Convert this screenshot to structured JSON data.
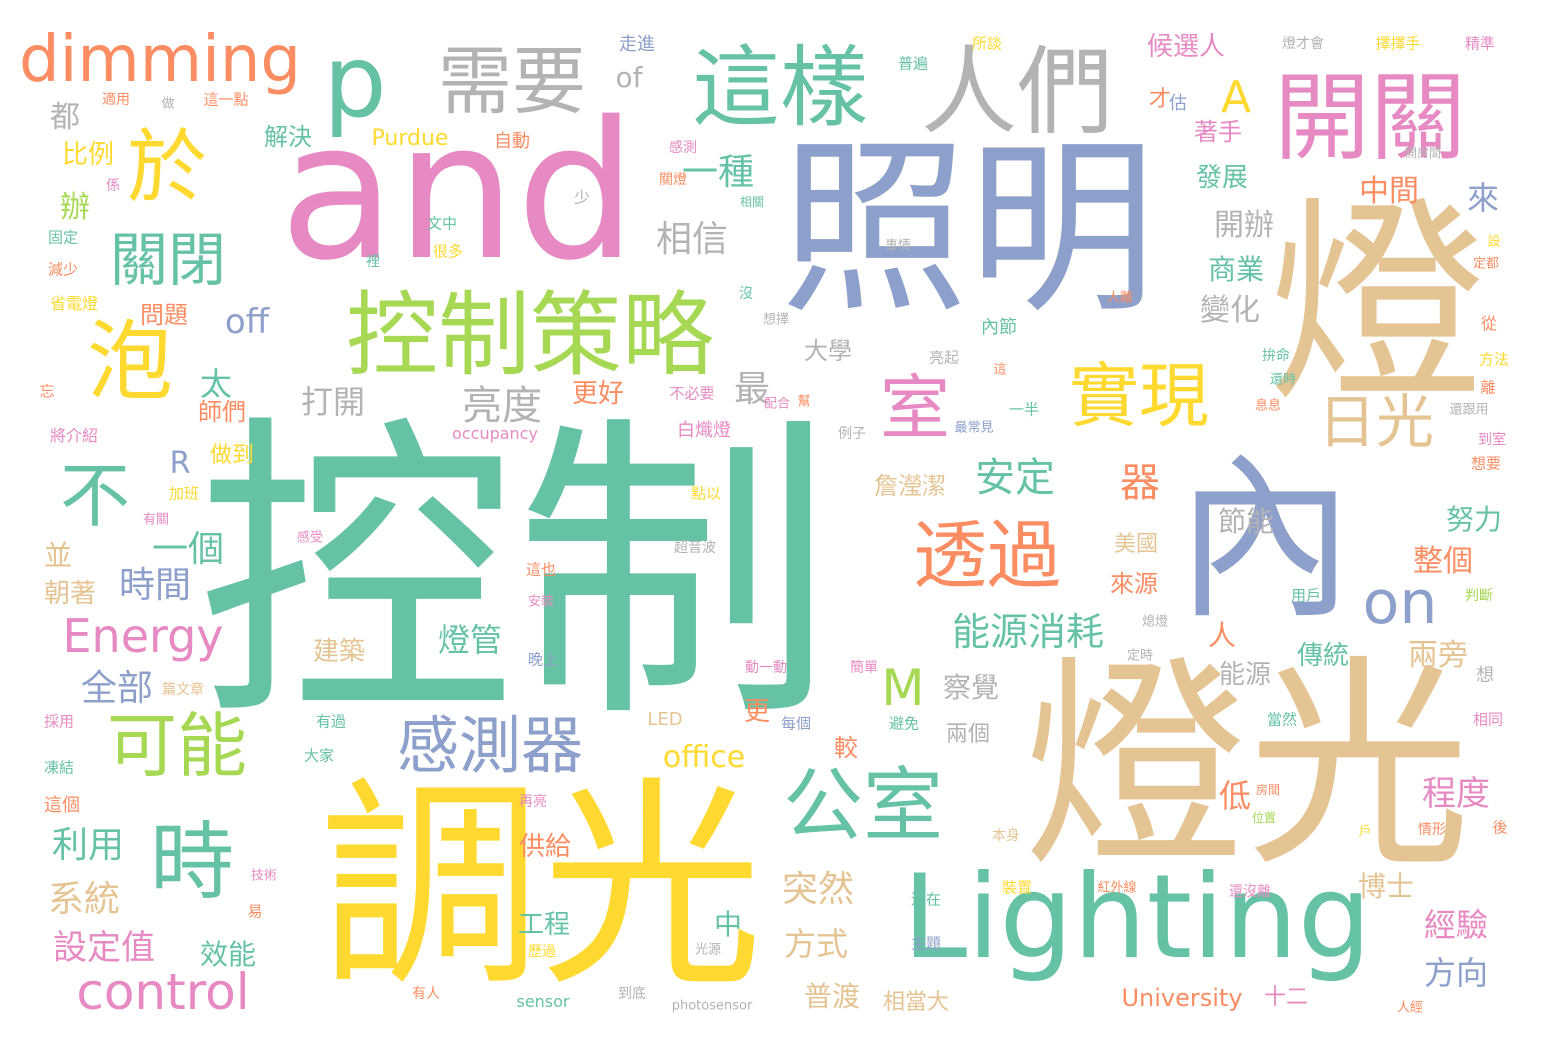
{
  "colors": {
    "teal": "#66c2a5",
    "orange": "#fc8d62",
    "blue": "#8da0cb",
    "pink": "#e78ac3",
    "green": "#a6d854",
    "yellow": "#ffd92f",
    "tan": "#e5c494",
    "gray": "#b3b3b3"
  },
  "words": [
    {
      "text": "控制",
      "color": "teal"
    },
    {
      "text": "and",
      "color": "pink"
    },
    {
      "text": "照明",
      "color": "blue"
    },
    {
      "text": "燈光",
      "color": "tan"
    },
    {
      "text": "調光",
      "color": "yellow"
    },
    {
      "text": "燈",
      "color": "tan"
    },
    {
      "text": "內",
      "color": "blue"
    },
    {
      "text": "Lighting",
      "color": "teal"
    },
    {
      "text": "控制策略",
      "color": "green"
    },
    {
      "text": "這樣",
      "color": "teal"
    },
    {
      "text": "人們",
      "color": "gray"
    },
    {
      "text": "開關",
      "color": "pink"
    },
    {
      "text": "dimming",
      "color": "orange"
    },
    {
      "text": "p",
      "color": "teal"
    },
    {
      "text": "需要",
      "color": "gray"
    },
    {
      "text": "於",
      "color": "yellow"
    },
    {
      "text": "泡",
      "color": "yellow"
    },
    {
      "text": "時",
      "color": "teal"
    },
    {
      "text": "公室",
      "color": "teal"
    },
    {
      "text": "透過",
      "color": "orange"
    },
    {
      "text": "實現",
      "color": "yellow"
    },
    {
      "text": "室",
      "color": "pink"
    },
    {
      "text": "可能",
      "color": "green"
    },
    {
      "text": "感測器",
      "color": "blue"
    },
    {
      "text": "不",
      "color": "teal"
    },
    {
      "text": "關閉",
      "color": "teal"
    },
    {
      "text": "日光",
      "color": "tan"
    },
    {
      "text": "on",
      "color": "blue"
    },
    {
      "text": "control",
      "color": "pink"
    },
    {
      "text": "Energy",
      "color": "pink"
    },
    {
      "text": "M",
      "color": "green"
    },
    {
      "text": "A",
      "color": "yellow"
    },
    {
      "text": "一種",
      "color": "teal"
    },
    {
      "text": "相信",
      "color": "gray"
    },
    {
      "text": "安定",
      "color": "teal"
    },
    {
      "text": "器",
      "color": "orange"
    },
    {
      "text": "能源消耗",
      "color": "teal"
    },
    {
      "text": "燈管",
      "color": "teal"
    },
    {
      "text": "亮度",
      "color": "gray"
    },
    {
      "text": "打開",
      "color": "gray"
    },
    {
      "text": "最",
      "color": "gray"
    },
    {
      "text": "太",
      "color": "teal"
    },
    {
      "text": "off",
      "color": "blue"
    },
    {
      "text": "一個",
      "color": "teal"
    },
    {
      "text": "時間",
      "color": "blue"
    },
    {
      "text": "全部",
      "color": "blue"
    },
    {
      "text": "利用",
      "color": "teal"
    },
    {
      "text": "系統",
      "color": "tan"
    },
    {
      "text": "設定值",
      "color": "pink"
    },
    {
      "text": "效能",
      "color": "teal"
    },
    {
      "text": "突然",
      "color": "tan"
    },
    {
      "text": "方式",
      "color": "tan"
    },
    {
      "text": "普渡",
      "color": "tan"
    },
    {
      "text": "相當大",
      "color": "tan"
    },
    {
      "text": "office",
      "color": "yellow"
    },
    {
      "text": "察覺",
      "color": "gray"
    },
    {
      "text": "節能",
      "color": "gray"
    },
    {
      "text": "變化",
      "color": "gray"
    },
    {
      "text": "開辦",
      "color": "gray"
    },
    {
      "text": "中間",
      "color": "orange"
    },
    {
      "text": "來",
      "color": "blue"
    },
    {
      "text": "商業",
      "color": "teal"
    },
    {
      "text": "發展",
      "color": "teal"
    },
    {
      "text": "著手",
      "color": "pink"
    },
    {
      "text": "候選人",
      "color": "pink"
    },
    {
      "text": "努力",
      "color": "teal"
    },
    {
      "text": "整個",
      "color": "orange"
    },
    {
      "text": "兩旁",
      "color": "tan"
    },
    {
      "text": "傳統",
      "color": "teal"
    },
    {
      "text": "能源",
      "color": "gray"
    },
    {
      "text": "程度",
      "color": "pink"
    },
    {
      "text": "經驗",
      "color": "pink"
    },
    {
      "text": "方向",
      "color": "blue"
    },
    {
      "text": "博士",
      "color": "tan"
    },
    {
      "text": "University",
      "color": "orange"
    },
    {
      "text": "十二",
      "color": "pink"
    },
    {
      "text": "解決",
      "color": "teal"
    },
    {
      "text": "比例",
      "color": "yellow"
    },
    {
      "text": "辦",
      "color": "green"
    },
    {
      "text": "都",
      "color": "gray"
    },
    {
      "text": "並",
      "color": "tan"
    },
    {
      "text": "朝著",
      "color": "tan"
    },
    {
      "text": "建築",
      "color": "tan"
    },
    {
      "text": "工程",
      "color": "teal"
    },
    {
      "text": "供給",
      "color": "orange"
    },
    {
      "text": "更好",
      "color": "orange"
    },
    {
      "text": "大學",
      "color": "gray"
    },
    {
      "text": "師們",
      "color": "orange"
    },
    {
      "text": "做到",
      "color": "yellow"
    },
    {
      "text": "問題",
      "color": "orange"
    },
    {
      "text": "詹瀅潔",
      "color": "tan"
    },
    {
      "text": "美國",
      "color": "tan"
    },
    {
      "text": "來源",
      "color": "orange"
    },
    {
      "text": "Purdue",
      "color": "yellow"
    },
    {
      "text": "自動",
      "color": "orange"
    },
    {
      "text": "of",
      "color": "gray"
    },
    {
      "text": "走進",
      "color": "blue"
    },
    {
      "text": "occupancy",
      "color": "pink"
    },
    {
      "text": "sensor",
      "color": "teal"
    },
    {
      "text": "photosensor",
      "color": "gray"
    },
    {
      "text": "LED",
      "color": "tan"
    },
    {
      "text": "白熾燈",
      "color": "pink"
    },
    {
      "text": "更",
      "color": "orange"
    },
    {
      "text": "較",
      "color": "orange"
    },
    {
      "text": "低",
      "color": "orange"
    },
    {
      "text": "人",
      "color": "orange"
    },
    {
      "text": "兩個",
      "color": "gray"
    },
    {
      "text": "中",
      "color": "teal"
    },
    {
      "text": "R",
      "color": "blue"
    },
    {
      "text": "內節",
      "color": "teal"
    },
    {
      "text": "才",
      "color": "orange"
    },
    {
      "text": "估",
      "color": "blue"
    },
    {
      "text": "精準",
      "color": "pink"
    },
    {
      "text": "擇擇手",
      "color": "yellow"
    },
    {
      "text": "燈才會",
      "color": "gray"
    },
    {
      "text": "所談",
      "color": "yellow"
    },
    {
      "text": "普遍",
      "color": "teal"
    },
    {
      "text": "這一點",
      "color": "orange"
    },
    {
      "text": "適用",
      "color": "orange"
    },
    {
      "text": "做",
      "color": "gray"
    },
    {
      "text": "係",
      "color": "pink"
    },
    {
      "text": "固定",
      "color": "teal"
    },
    {
      "text": "減少",
      "color": "orange"
    },
    {
      "text": "省電燈",
      "color": "yellow"
    },
    {
      "text": "忘",
      "color": "orange"
    },
    {
      "text": "將介紹",
      "color": "pink"
    },
    {
      "text": "加班",
      "color": "yellow"
    },
    {
      "text": "有關",
      "color": "pink"
    },
    {
      "text": "篇文章",
      "color": "tan"
    },
    {
      "text": "採用",
      "color": "pink"
    },
    {
      "text": "凍結",
      "color": "teal"
    },
    {
      "text": "這個",
      "color": "orange"
    },
    {
      "text": "文中",
      "color": "teal"
    },
    {
      "text": "很多",
      "color": "yellow"
    },
    {
      "text": "裡",
      "color": "teal"
    },
    {
      "text": "少",
      "color": "gray"
    },
    {
      "text": "感測",
      "color": "pink"
    },
    {
      "text": "關燈",
      "color": "orange"
    },
    {
      "text": "相關",
      "color": "teal"
    },
    {
      "text": "事情",
      "color": "gray"
    },
    {
      "text": "沒",
      "color": "teal"
    },
    {
      "text": "想擇",
      "color": "gray"
    },
    {
      "text": "配合",
      "color": "pink"
    },
    {
      "text": "例子",
      "color": "gray"
    },
    {
      "text": "不必要",
      "color": "pink"
    },
    {
      "text": "亮起",
      "color": "gray"
    },
    {
      "text": "幫",
      "color": "orange"
    },
    {
      "text": "最常見",
      "color": "blue"
    },
    {
      "text": "一半",
      "color": "teal"
    },
    {
      "text": "拚命",
      "color": "teal"
    },
    {
      "text": "還時",
      "color": "teal"
    },
    {
      "text": "息息",
      "color": "orange"
    },
    {
      "text": "還跟用",
      "color": "gray"
    },
    {
      "text": "到室",
      "color": "pink"
    },
    {
      "text": "想要",
      "color": "orange"
    },
    {
      "text": "方法",
      "color": "yellow"
    },
    {
      "text": "離",
      "color": "orange"
    },
    {
      "text": "從",
      "color": "orange"
    },
    {
      "text": "設",
      "color": "yellow"
    },
    {
      "text": "定都",
      "color": "orange"
    },
    {
      "text": "開房間",
      "color": "gray"
    },
    {
      "text": "人離",
      "color": "orange"
    },
    {
      "text": "這",
      "color": "orange"
    },
    {
      "text": "點以",
      "color": "yellow"
    },
    {
      "text": "超音波",
      "color": "gray"
    },
    {
      "text": "這也",
      "color": "orange"
    },
    {
      "text": "安裝",
      "color": "pink"
    },
    {
      "text": "晚上",
      "color": "blue"
    },
    {
      "text": "動一動",
      "color": "pink"
    },
    {
      "text": "簡單",
      "color": "pink"
    },
    {
      "text": "用戶",
      "color": "teal"
    },
    {
      "text": "熄燈",
      "color": "gray"
    },
    {
      "text": "定時",
      "color": "gray"
    },
    {
      "text": "判斷",
      "color": "green"
    },
    {
      "text": "有過",
      "color": "teal"
    },
    {
      "text": "大家",
      "color": "teal"
    },
    {
      "text": "每個",
      "color": "blue"
    },
    {
      "text": "避免",
      "color": "teal"
    },
    {
      "text": "當然",
      "color": "teal"
    },
    {
      "text": "想",
      "color": "gray"
    },
    {
      "text": "相同",
      "color": "pink"
    },
    {
      "text": "房間",
      "color": "orange"
    },
    {
      "text": "位置",
      "color": "green"
    },
    {
      "text": "戶",
      "color": "yellow"
    },
    {
      "text": "情形",
      "color": "orange"
    },
    {
      "text": "後",
      "color": "orange"
    },
    {
      "text": "再亮",
      "color": "pink"
    },
    {
      "text": "本身",
      "color": "tan"
    },
    {
      "text": "技術",
      "color": "pink"
    },
    {
      "text": "易",
      "color": "orange"
    },
    {
      "text": "還在",
      "color": "teal"
    },
    {
      "text": "裝置",
      "color": "yellow"
    },
    {
      "text": "紅外線",
      "color": "orange"
    },
    {
      "text": "還沒離",
      "color": "pink"
    },
    {
      "text": "歷過",
      "color": "yellow"
    },
    {
      "text": "光源",
      "color": "gray"
    },
    {
      "text": "主題",
      "color": "blue"
    },
    {
      "text": "有人",
      "color": "orange"
    },
    {
      "text": "到底",
      "color": "gray"
    },
    {
      "text": "人經",
      "color": "orange"
    },
    {
      "text": "感受",
      "color": "pink"
    }
  ]
}
